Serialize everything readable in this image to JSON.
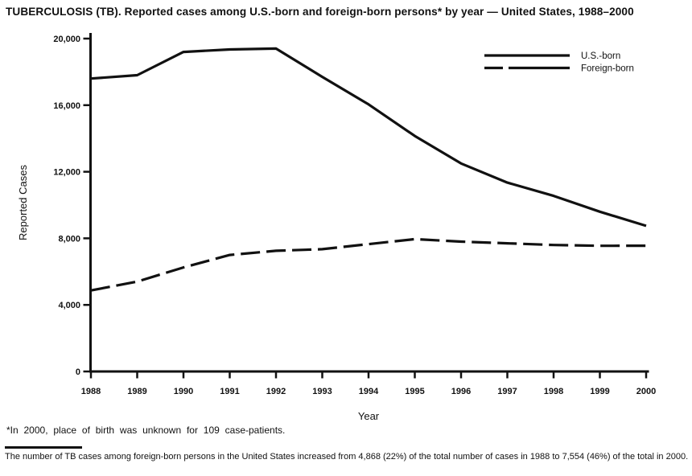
{
  "title": "TUBERCULOSIS (TB). Reported cases among U.S.-born and foreign-born persons* by year — United States, 1988–2000",
  "footnote": "*In 2000, place of birth was unknown for 109 case-patients.",
  "source_note": "The number of TB cases among foreign-born persons in the United States increased from 4,868 (22%) of the total number of cases in 1988 to 7,554 (46%) of the total in 2000.",
  "chart_data": {
    "type": "line",
    "x": [
      1988,
      1989,
      1990,
      1991,
      1992,
      1993,
      1994,
      1995,
      1996,
      1997,
      1998,
      1999,
      2000
    ],
    "x_tick_labels": [
      "1988",
      "1989",
      "1990",
      "1991",
      "1992",
      "1993",
      "1994",
      "1995",
      "1996",
      "1997",
      "1998",
      "1999",
      "2000"
    ],
    "series": [
      {
        "name": "U.S.-born",
        "style": "solid",
        "values": [
          17600,
          17800,
          19200,
          19350,
          19400,
          17700,
          16050,
          14150,
          12500,
          11350,
          10550,
          9600,
          8750
        ]
      },
      {
        "name": "Foreign-born",
        "style": "dashed",
        "values": [
          4868,
          5400,
          6250,
          7000,
          7250,
          7350,
          7650,
          7950,
          7800,
          7700,
          7600,
          7550,
          7554
        ]
      }
    ],
    "xlabel": "Year",
    "ylabel": "Reported Cases",
    "ylim": [
      0,
      20000
    ],
    "yticks": [
      0,
      4000,
      8000,
      12000,
      16000,
      20000
    ],
    "ytick_labels": [
      "0",
      "4,000",
      "8,000",
      "12,000",
      "16,000",
      "20,000"
    ],
    "legend_position": "top-right",
    "grid": false,
    "line_color": "#111111",
    "background_color": "#ffffff"
  }
}
